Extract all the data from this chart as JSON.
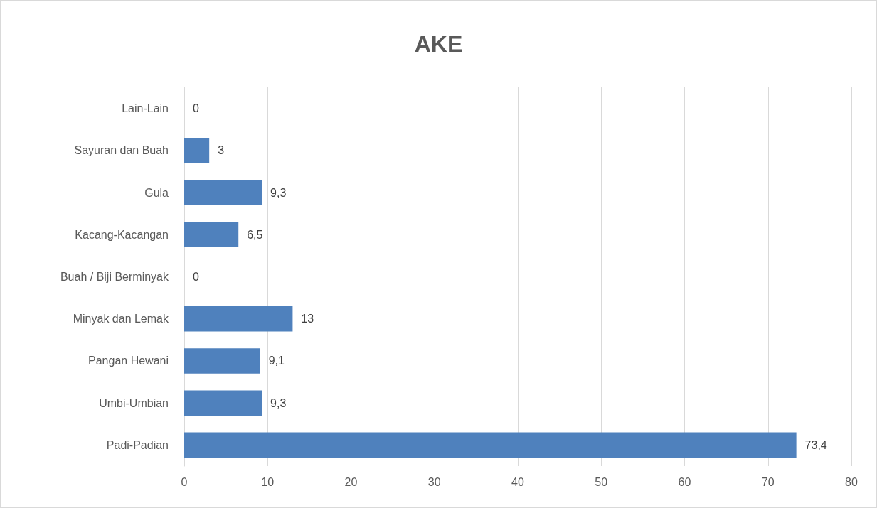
{
  "chart_data": {
    "type": "bar",
    "title": "AKE",
    "orientation": "horizontal",
    "categories": [
      "Lain-Lain",
      "Sayuran dan Buah",
      "Gula",
      "Kacang-Kacangan",
      "Buah / Biji Berminyak",
      "Minyak dan Lemak",
      "Pangan Hewani",
      "Umbi-Umbian",
      "Padi-Padian"
    ],
    "values": [
      0,
      3,
      9.3,
      6.5,
      0,
      13,
      9.1,
      9.3,
      73.4
    ],
    "value_labels": [
      "0",
      "3",
      "9,3",
      "6,5",
      "0",
      "13",
      "9,1",
      "9,3",
      "73,4"
    ],
    "color": "#4f81bd",
    "xlim": [
      0,
      80
    ],
    "xticks": [
      0,
      10,
      20,
      30,
      40,
      50,
      60,
      70,
      80
    ],
    "grid": "x"
  }
}
